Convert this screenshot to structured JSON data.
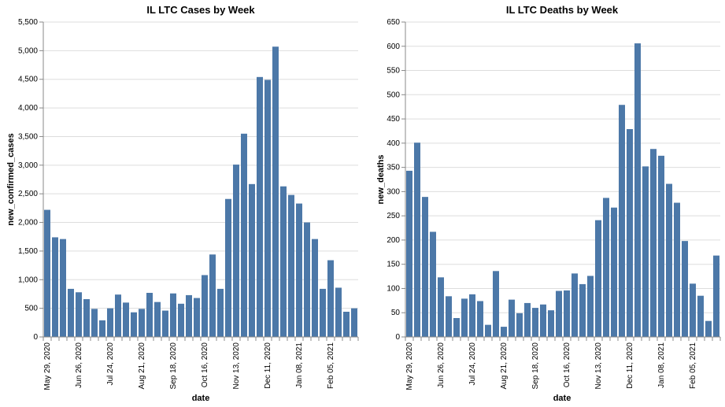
{
  "chart_data": [
    {
      "type": "bar",
      "title": "IL LTC Cases by Week",
      "xlabel": "date",
      "ylabel": "new_confirmed_cases",
      "ylim": [
        0,
        5500
      ],
      "yticks": [
        0,
        500,
        1000,
        1500,
        2000,
        2500,
        3000,
        3500,
        4000,
        4500,
        5000,
        5500
      ],
      "grid": true,
      "color": "#4c78a8",
      "x_tick_labels": [
        "May 29, 2020",
        "Jun 26, 2020",
        "Jul 24, 2020",
        "Aug 21, 2020",
        "Sep 18, 2020",
        "Oct 16, 2020",
        "Nov 13, 2020",
        "Dec 11, 2020",
        "Jan 08, 2021",
        "Feb 05, 2021"
      ],
      "x": [
        "2020-05-29",
        "2020-06-05",
        "2020-06-12",
        "2020-06-19",
        "2020-06-26",
        "2020-07-03",
        "2020-07-10",
        "2020-07-17",
        "2020-07-24",
        "2020-07-31",
        "2020-08-07",
        "2020-08-14",
        "2020-08-21",
        "2020-08-28",
        "2020-09-04",
        "2020-09-11",
        "2020-09-18",
        "2020-09-25",
        "2020-10-02",
        "2020-10-09",
        "2020-10-16",
        "2020-10-23",
        "2020-10-30",
        "2020-11-06",
        "2020-11-13",
        "2020-11-20",
        "2020-11-27",
        "2020-12-04",
        "2020-12-11",
        "2020-12-18",
        "2020-12-25",
        "2021-01-01",
        "2021-01-08",
        "2021-01-15",
        "2021-01-22",
        "2021-01-29",
        "2021-02-05",
        "2021-02-12",
        "2021-02-19",
        "2021-02-26"
      ],
      "values": [
        2220,
        1740,
        1710,
        840,
        780,
        660,
        490,
        290,
        500,
        740,
        600,
        430,
        490,
        770,
        610,
        460,
        760,
        580,
        730,
        680,
        1080,
        1440,
        840,
        2410,
        3010,
        3550,
        2670,
        4540,
        4490,
        5070,
        2630,
        2480,
        2330,
        2000,
        1710,
        840,
        1340,
        860,
        440,
        500
      ]
    },
    {
      "type": "bar",
      "title": "IL LTC Deaths by Week",
      "xlabel": "date",
      "ylabel": "new_deaths",
      "ylim": [
        0,
        650
      ],
      "yticks": [
        0,
        50,
        100,
        150,
        200,
        250,
        300,
        350,
        400,
        450,
        500,
        550,
        600,
        650
      ],
      "grid": true,
      "color": "#4c78a8",
      "x_tick_labels": [
        "May 29, 2020",
        "Jun 26, 2020",
        "Jul 24, 2020",
        "Aug 21, 2020",
        "Sep 18, 2020",
        "Oct 16, 2020",
        "Nov 13, 2020",
        "Dec 11, 2020",
        "Jan 08, 2021",
        "Feb 05, 2021"
      ],
      "x": [
        "2020-05-29",
        "2020-06-05",
        "2020-06-12",
        "2020-06-19",
        "2020-06-26",
        "2020-07-03",
        "2020-07-10",
        "2020-07-17",
        "2020-07-24",
        "2020-07-31",
        "2020-08-07",
        "2020-08-14",
        "2020-08-21",
        "2020-08-28",
        "2020-09-04",
        "2020-09-11",
        "2020-09-18",
        "2020-09-25",
        "2020-10-02",
        "2020-10-09",
        "2020-10-16",
        "2020-10-23",
        "2020-10-30",
        "2020-11-06",
        "2020-11-13",
        "2020-11-20",
        "2020-11-27",
        "2020-12-04",
        "2020-12-11",
        "2020-12-18",
        "2020-12-25",
        "2021-01-01",
        "2021-01-08",
        "2021-01-15",
        "2021-01-22",
        "2021-01-29",
        "2021-02-05",
        "2021-02-12",
        "2021-02-19",
        "2021-02-26"
      ],
      "values": [
        343,
        401,
        289,
        217,
        123,
        84,
        39,
        79,
        88,
        74,
        25,
        136,
        21,
        77,
        49,
        70,
        60,
        67,
        55,
        95,
        96,
        131,
        109,
        126,
        241,
        287,
        267,
        479,
        429,
        606,
        352,
        388,
        374,
        316,
        277,
        198,
        110,
        85,
        33,
        168
      ]
    }
  ]
}
